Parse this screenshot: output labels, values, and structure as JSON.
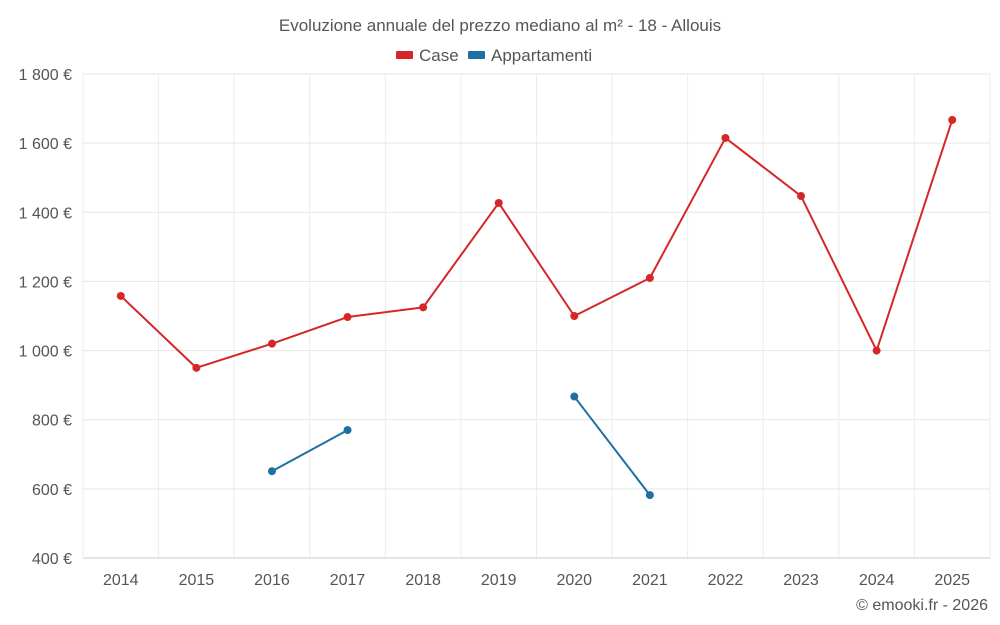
{
  "chart_data": {
    "type": "line",
    "title": "Evoluzione annuale del prezzo mediano al m² - 18 - Allouis",
    "categories": [
      "2014",
      "2015",
      "2016",
      "2017",
      "2018",
      "2019",
      "2020",
      "2021",
      "2022",
      "2023",
      "2024",
      "2025"
    ],
    "ylim": [
      400,
      1800
    ],
    "yticks": [
      400,
      600,
      800,
      1000,
      1200,
      1400,
      1600,
      1800
    ],
    "ytick_labels": [
      "400 €",
      "600 €",
      "800 €",
      "1 000 €",
      "1 200 €",
      "1 400 €",
      "1 600 €",
      "1 800 €"
    ],
    "grid": true,
    "legend_position": "top-center",
    "series": [
      {
        "name": "Case",
        "color": "#d62728",
        "values": [
          1158,
          950,
          1020,
          1097,
          1125,
          1427,
          1100,
          1210,
          1615,
          1447,
          1000,
          1667
        ]
      },
      {
        "name": "Appartamenti",
        "color": "#1f6fa3",
        "values": [
          null,
          null,
          651,
          770,
          null,
          null,
          867,
          582,
          null,
          null,
          null,
          null
        ]
      }
    ],
    "credit": "© emooki.fr - 2026"
  }
}
